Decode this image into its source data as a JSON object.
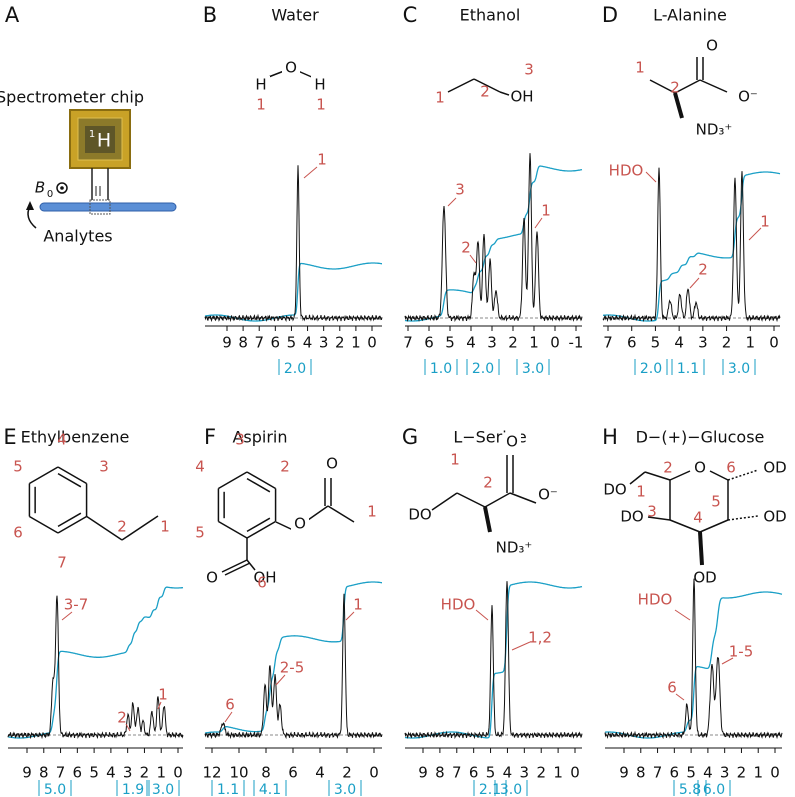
{
  "panels": [
    {
      "letter": "A",
      "caption": "Spectrometer chip",
      "chip_mass": "1",
      "chip_element": "H",
      "field": "B",
      "field_sub": "0",
      "sample": "Analytes"
    },
    {
      "letter": "B",
      "title": "Water",
      "atoms": [
        "H",
        "O",
        "H"
      ],
      "numbers": [
        "1",
        "1"
      ],
      "peak_labels": [
        "1"
      ],
      "ticks": [
        "9",
        "8",
        "7",
        "6",
        "5",
        "4",
        "3",
        "2",
        "1",
        "0"
      ],
      "integrals": [
        "2.0"
      ]
    },
    {
      "letter": "C",
      "title": "Ethanol",
      "atoms": [
        "OH"
      ],
      "numbers": [
        "1",
        "2",
        "3"
      ],
      "peak_labels": [
        "3",
        "2",
        "1"
      ],
      "ticks": [
        "7",
        "6",
        "5",
        "4",
        "3",
        "2",
        "1",
        "0",
        "-1"
      ],
      "integrals": [
        "1.0",
        "2.0",
        "3.0"
      ]
    },
    {
      "letter": "D",
      "title": "L-Alanine",
      "atoms": [
        "O",
        "O⁻",
        "ND₃⁺"
      ],
      "numbers": [
        "1",
        "2"
      ],
      "peak_labels": [
        "HDO",
        "2",
        "1"
      ],
      "ticks": [
        "7",
        "6",
        "5",
        "4",
        "3",
        "2",
        "1",
        "0"
      ],
      "integrals": [
        "2.0",
        "1.1",
        "3.0"
      ]
    },
    {
      "letter": "E",
      "title": "Ethylbenzene",
      "atoms": [],
      "numbers": [
        "4",
        "5",
        "3",
        "6",
        "2",
        "1",
        "7"
      ],
      "peak_labels": [
        "3-7",
        "2",
        "1"
      ],
      "ticks": [
        "9",
        "8",
        "7",
        "6",
        "5",
        "4",
        "3",
        "2",
        "1",
        "0"
      ],
      "integrals": [
        "5.0",
        "1.9",
        "3.0"
      ]
    },
    {
      "letter": "F",
      "title": "Aspirin",
      "atoms": [
        "O",
        "O",
        "O",
        "OH"
      ],
      "numbers": [
        "3",
        "4",
        "2",
        "5",
        "1",
        "6"
      ],
      "peak_labels": [
        "6",
        "2-5",
        "1"
      ],
      "ticks": [
        "12",
        "10",
        "8",
        "6",
        "4",
        "2",
        "0"
      ],
      "integrals": [
        "1.1",
        "4.1",
        "3.0"
      ]
    },
    {
      "letter": "G",
      "title": "L−Serine",
      "atoms": [
        "DO",
        "O",
        "O⁻",
        "ND₃⁺"
      ],
      "numbers": [
        "1",
        "2"
      ],
      "peak_labels": [
        "HDO",
        "1,2"
      ],
      "ticks": [
        "9",
        "8",
        "7",
        "6",
        "5",
        "4",
        "3",
        "2",
        "1",
        "0"
      ],
      "integrals": [
        "2.1",
        "3.0"
      ]
    },
    {
      "letter": "H",
      "title": "D−(+)−Glucose",
      "atoms": [
        "O",
        "DO",
        "DO",
        "OD",
        "OD",
        "OD"
      ],
      "numbers": [
        "1",
        "2",
        "3",
        "4",
        "5",
        "6"
      ],
      "peak_labels": [
        "HDO",
        "6",
        "1-5"
      ],
      "ticks": [
        "9",
        "8",
        "7",
        "6",
        "5",
        "4",
        "3",
        "2",
        "1",
        "0"
      ],
      "integrals": [
        "5.8",
        "6.0"
      ]
    }
  ]
}
